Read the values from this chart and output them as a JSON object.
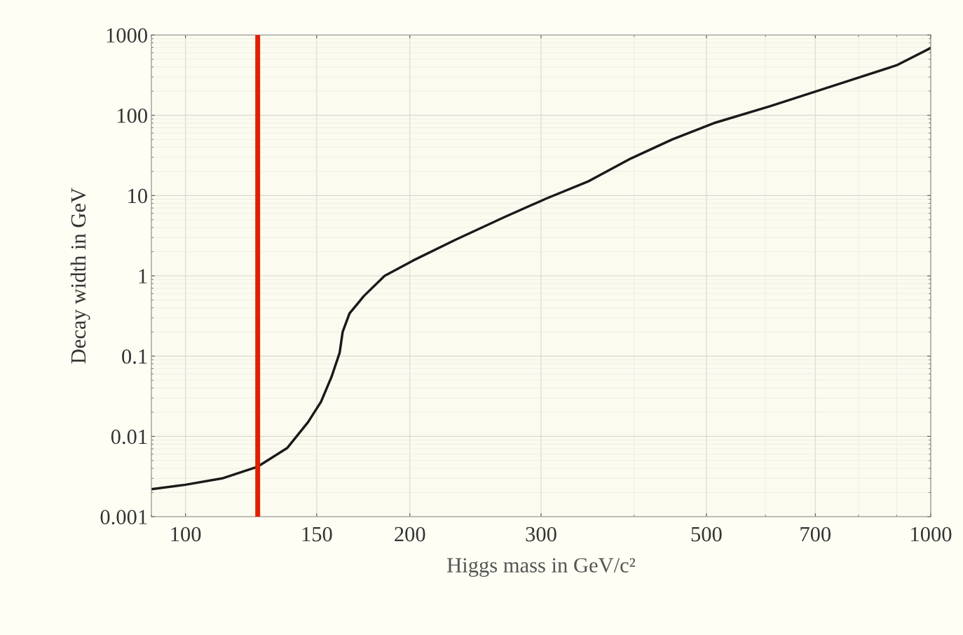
{
  "chart_data": {
    "type": "line",
    "xlabel": "Higgs mass in GeV/c²",
    "ylabel": "Decay width in GeV",
    "log": "xy",
    "grid": true,
    "marker": "none",
    "line_style": "solid",
    "xlim": [
      90,
      1000
    ],
    "ylim": [
      0.001,
      1000
    ],
    "xticks": [
      100,
      150,
      200,
      300,
      500,
      700,
      1000
    ],
    "yticks": [
      0.001,
      0.01,
      0.1,
      1,
      10,
      100,
      1000
    ],
    "x": [
      90,
      100,
      112,
      125,
      137,
      146,
      152,
      157,
      161,
      162.5,
      166,
      173.5,
      185,
      202,
      230,
      268,
      305,
      347,
      396,
      450,
      512,
      609,
      757,
      900,
      1000
    ],
    "series": [
      {
        "color": "#1a1a1a",
        "values": [
          0.0022,
          0.0025,
          0.003,
          0.0042,
          0.0072,
          0.015,
          0.027,
          0.055,
          0.11,
          0.2,
          0.34,
          0.56,
          1.0,
          1.55,
          2.8,
          5.4,
          9.2,
          15,
          29,
          50,
          80,
          130,
          250,
          420,
          690
        ]
      }
    ],
    "ref_lines": [
      {
        "axis": "x",
        "value": 125,
        "color": "#e02000",
        "line_style": "solid"
      }
    ]
  }
}
